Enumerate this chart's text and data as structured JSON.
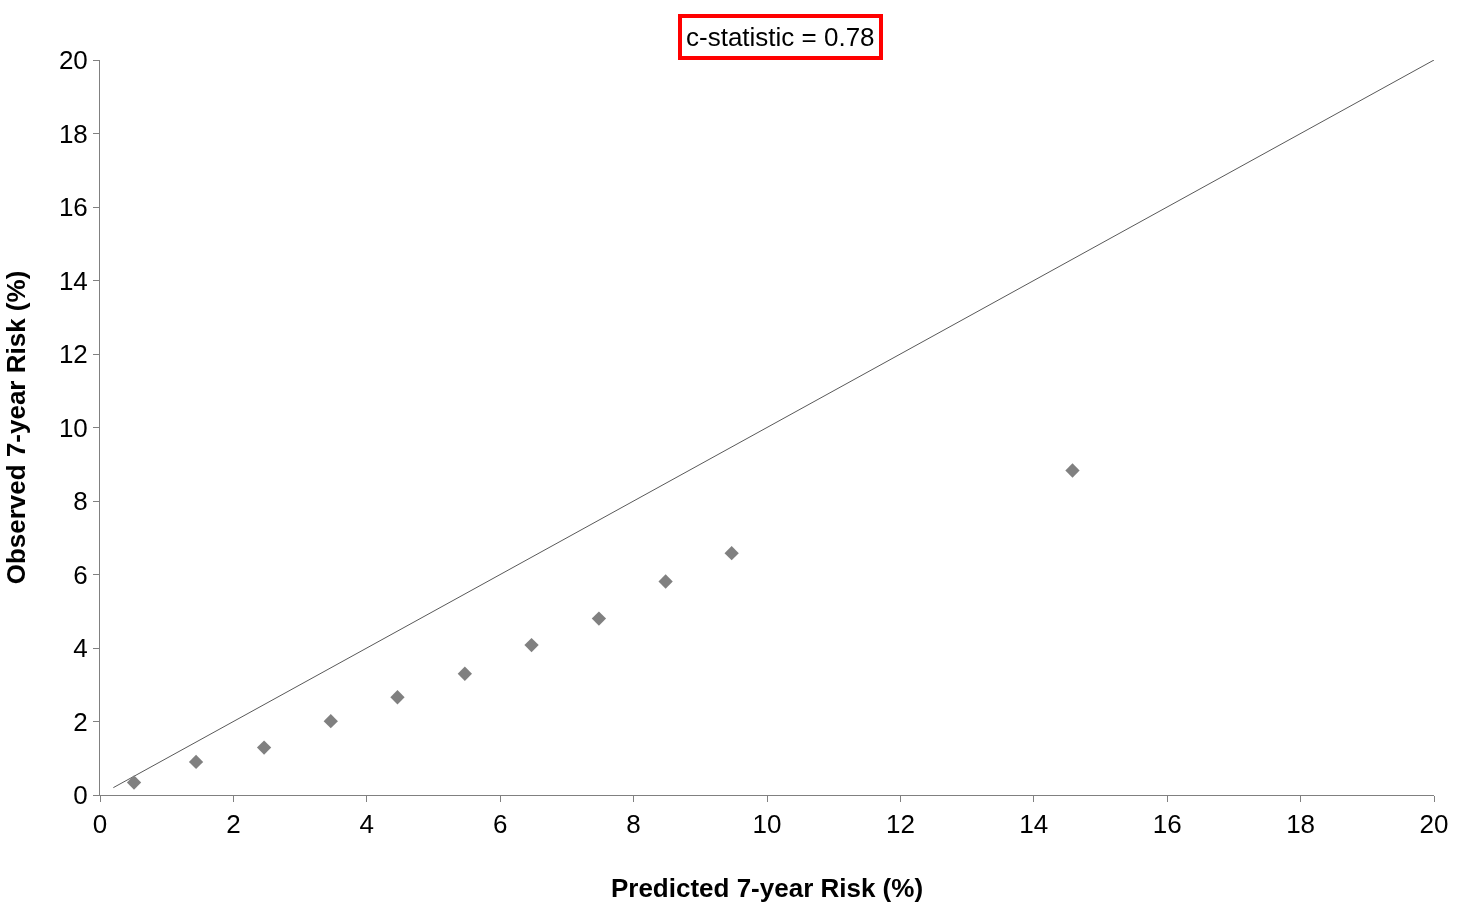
{
  "chart_data": {
    "type": "scatter",
    "xlabel": "Predicted 7-year Risk (%)",
    "ylabel": "Observed 7-year Risk (%)",
    "annotations": [
      "c-statistic = 0.78"
    ],
    "series": [
      {
        "type": "line",
        "color": "#595959",
        "x": [
          0.2,
          20
        ],
        "values": [
          0.2,
          20
        ],
        "marker": "none",
        "line_style": "solid"
      },
      {
        "color": "#808080",
        "marker": "diamond",
        "x": [
          0.51,
          1.44,
          2.46,
          3.46,
          4.46,
          5.47,
          6.47,
          7.48,
          8.48,
          9.47,
          14.58
        ],
        "values": [
          0.34,
          0.9,
          1.29,
          2.01,
          2.66,
          3.3,
          4.08,
          4.8,
          5.81,
          6.58,
          8.83
        ]
      }
    ],
    "xlim": [
      0,
      20
    ],
    "xticks": [
      0,
      2,
      4,
      6,
      8,
      10,
      12,
      14,
      16,
      18,
      20
    ],
    "ylim": [
      0,
      20
    ],
    "yticks": [
      0,
      2,
      4,
      6,
      8,
      10,
      12,
      14,
      16,
      18,
      20
    ]
  }
}
